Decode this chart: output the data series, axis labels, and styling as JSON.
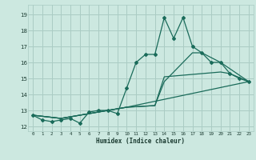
{
  "title": "",
  "xlabel": "Humidex (Indice chaleur)",
  "bg_color": "#cce8e0",
  "grid_color": "#aaccc4",
  "line_color": "#1a6b5a",
  "xlim": [
    -0.5,
    23.5
  ],
  "ylim": [
    11.7,
    19.6
  ],
  "xtick_labels": [
    "0",
    "1",
    "2",
    "3",
    "4",
    "5",
    "6",
    "7",
    "8",
    "9",
    "10",
    "11",
    "12",
    "13",
    "14",
    "15",
    "16",
    "17",
    "18",
    "19",
    "20",
    "21",
    "22",
    "23"
  ],
  "ytick_values": [
    12,
    13,
    14,
    15,
    16,
    17,
    18,
    19
  ],
  "line_main_x": [
    0,
    1,
    2,
    3,
    4,
    5,
    6,
    7,
    8,
    9,
    10,
    11,
    12,
    13,
    14,
    15,
    16,
    17,
    18,
    19,
    20,
    21,
    22,
    23
  ],
  "line_main_y": [
    12.7,
    12.4,
    12.3,
    12.4,
    12.5,
    12.2,
    12.9,
    13.0,
    13.0,
    12.8,
    14.4,
    16.0,
    16.5,
    16.5,
    18.8,
    17.5,
    18.8,
    17.0,
    16.6,
    16.0,
    16.0,
    15.3,
    15.0,
    14.8
  ],
  "line2_x": [
    0,
    3,
    10,
    13,
    14,
    17,
    18,
    20,
    23
  ],
  "line2_y": [
    12.7,
    12.5,
    13.2,
    13.3,
    14.8,
    16.6,
    16.6,
    16.0,
    14.8
  ],
  "line3_x": [
    0,
    3,
    10,
    13,
    14,
    20,
    21,
    23
  ],
  "line3_y": [
    12.7,
    12.5,
    13.2,
    13.3,
    15.1,
    15.4,
    15.3,
    14.8
  ],
  "line4_x": [
    0,
    3,
    10,
    23
  ],
  "line4_y": [
    12.7,
    12.5,
    13.2,
    14.8
  ]
}
